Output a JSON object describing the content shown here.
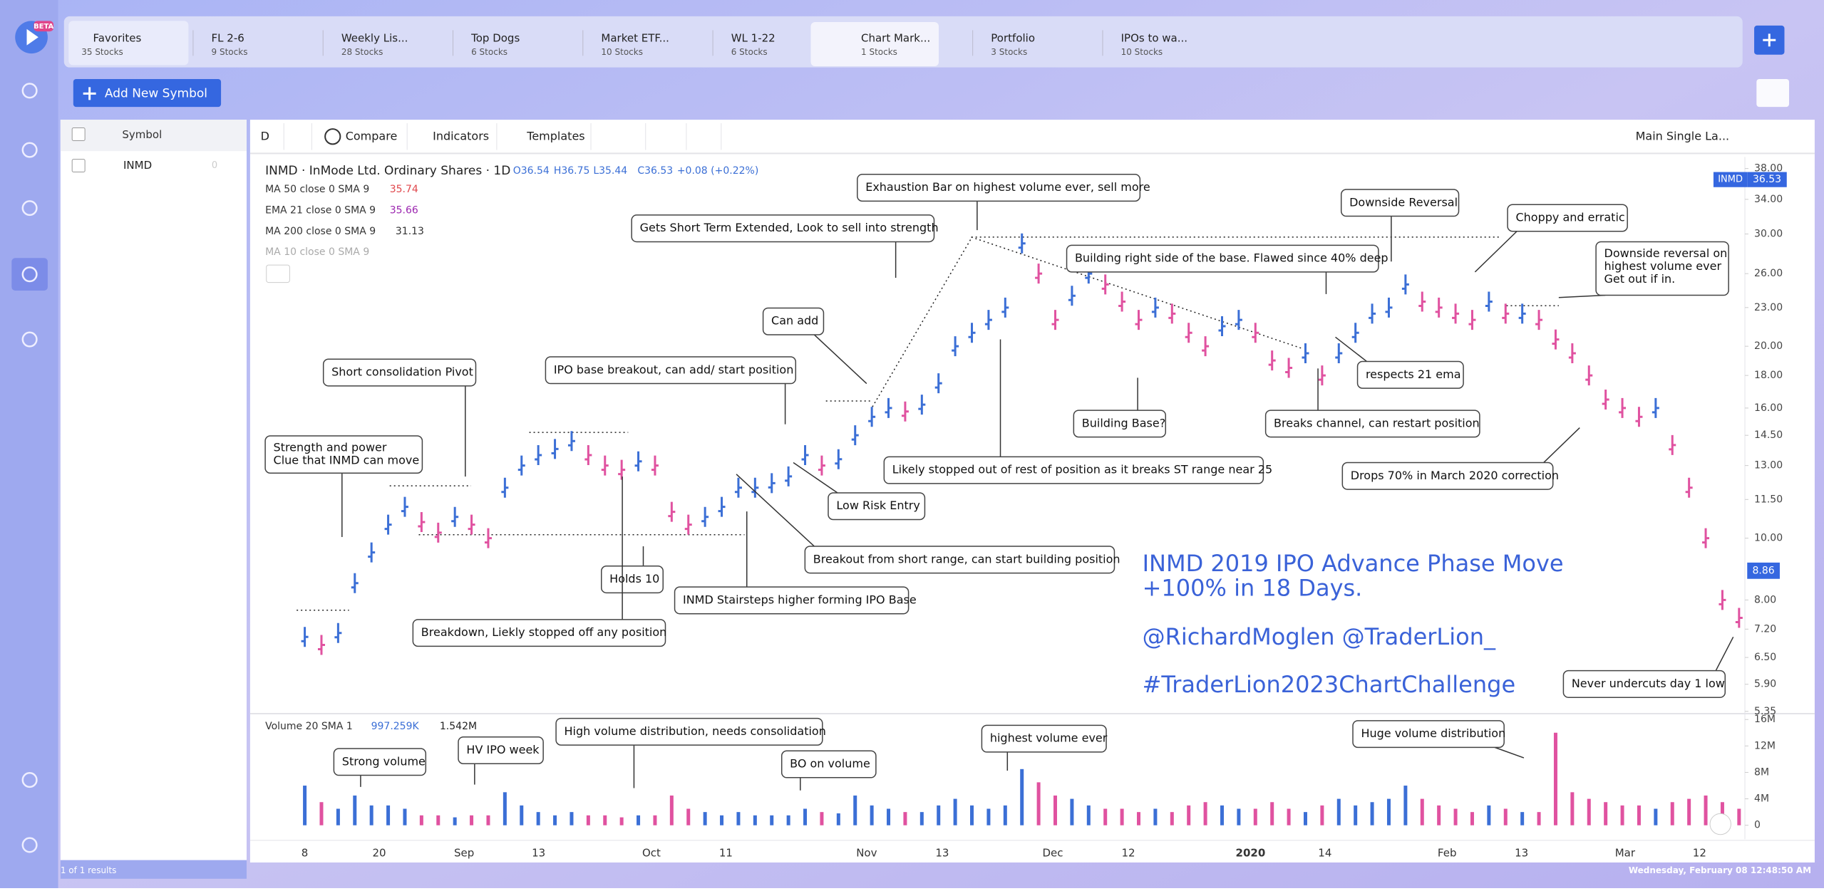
{
  "app": {
    "beta": "BETA",
    "tabs": [
      {
        "name": "Favorites",
        "count": "35 Stocks"
      },
      {
        "name": "FL 2-6",
        "count": "9 Stocks"
      },
      {
        "name": "Weekly Lis...",
        "count": "28 Stocks"
      },
      {
        "name": "Top Dogs",
        "count": "6 Stocks"
      },
      {
        "name": "Market ETF...",
        "count": "10 Stocks"
      },
      {
        "name": "WL 1-22",
        "count": "6 Stocks"
      },
      {
        "name": "Chart Mark...",
        "count": "1 Stocks"
      },
      {
        "name": "Portfolio",
        "count": "3 Stocks"
      },
      {
        "name": "IPOs to wa...",
        "count": "10 Stocks"
      }
    ],
    "add_symbol": "Add New Symbol",
    "list_header": "Symbol",
    "list_rows": [
      {
        "symbol": "INMD",
        "value": "0"
      }
    ],
    "results": "1 of 1 results",
    "clock": "Wednesday, February 08 12:48:50 AM",
    "toolbar": {
      "interval": "D",
      "compare": "Compare",
      "indicators": "Indicators",
      "templates": "Templates",
      "layout": "Main Single La..."
    }
  },
  "chart_data": {
    "type": "ohlc",
    "title": "INMD · InMode Ltd. Ordinary Shares · 1D",
    "quote": {
      "open": "O36.54",
      "high": "H36.75",
      "low": "L35.44",
      "close": "C36.53",
      "change": "+0.08 (+0.22%)"
    },
    "indicators": [
      {
        "name": "MA 50 close 0 SMA 9",
        "value": "35.74",
        "color": "#e0474c"
      },
      {
        "name": "EMA 21 close 0 SMA 9",
        "value": "35.66",
        "color": "#9c27b0"
      },
      {
        "name": "MA 200 close 0 SMA 9",
        "value": "31.13",
        "color": "#333333"
      },
      {
        "name": "MA 10 close 0 SMA 9",
        "color": "#aaaaaa"
      }
    ],
    "volume_legend": {
      "name": "Volume 20 SMA 1",
      "sma": "997.259K",
      "last": "1.542M"
    },
    "price_badge": {
      "symbol": "INMD",
      "price": "36.53"
    },
    "cursor_badge": "8.86",
    "up_color": "#3b6fd6",
    "down_color": "#e052a0",
    "log_scale": true,
    "ylim": [
      5.35,
      38
    ],
    "yticks": [
      {
        "value": 38,
        "label": "38.00"
      },
      {
        "value": 34,
        "label": "34.00"
      },
      {
        "value": 30,
        "label": "30.00"
      },
      {
        "value": 26,
        "label": "26.00"
      },
      {
        "value": 23,
        "label": "23.00"
      },
      {
        "value": 20,
        "label": "20.00"
      },
      {
        "value": 18,
        "label": "18.00"
      },
      {
        "value": 16,
        "label": "16.00"
      },
      {
        "value": 14.5,
        "label": "14.50"
      },
      {
        "value": 13,
        "label": "13.00"
      },
      {
        "value": 11.5,
        "label": "11.50"
      },
      {
        "value": 10,
        "label": "10.00"
      },
      {
        "value": 8,
        "label": "8.00"
      },
      {
        "value": 7.2,
        "label": "7.20"
      },
      {
        "value": 6.5,
        "label": "6.50"
      },
      {
        "value": 5.9,
        "label": "5.90"
      },
      {
        "value": 5.35,
        "label": "5.35"
      }
    ],
    "x_labels": [
      "8",
      "20",
      "Sep",
      "13",
      "Oct",
      "11",
      "Nov",
      "13",
      "Dec",
      "12",
      "2020",
      "14",
      "Feb",
      "13",
      "Mar",
      "12"
    ],
    "closes": [
      7.0,
      6.8,
      7.1,
      8.5,
      9.5,
      10.5,
      11.2,
      10.6,
      10.2,
      10.8,
      10.5,
      10.0,
      12.0,
      13.0,
      13.5,
      13.8,
      14.2,
      13.5,
      13.0,
      12.8,
      13.2,
      13.0,
      11.0,
      10.5,
      10.8,
      11.2,
      12.0,
      12.0,
      12.2,
      12.5,
      13.5,
      13.0,
      13.3,
      14.5,
      15.5,
      16.0,
      15.8,
      16.2,
      17.5,
      20.0,
      21.0,
      22.0,
      23.0,
      29.0,
      26.0,
      22.0,
      24.0,
      26.0,
      25.0,
      23.5,
      22.0,
      23.0,
      22.5,
      21.0,
      20.0,
      21.5,
      22.0,
      21.0,
      19.0,
      18.5,
      19.5,
      18.0,
      19.5,
      21.0,
      22.5,
      23.0,
      25.0,
      23.5,
      23.0,
      22.5,
      22.0,
      23.5,
      22.5,
      22.5,
      22.0,
      20.5,
      19.5,
      18.0,
      16.5,
      16.0,
      15.5,
      16.0,
      14.0,
      12.0,
      10.0,
      8.0,
      7.5
    ],
    "volumes": [
      6,
      3.5,
      2.5,
      4.5,
      3,
      3,
      2.5,
      1.5,
      1.5,
      1.2,
      1.5,
      1.5,
      5,
      3,
      2,
      1.5,
      2,
      1.5,
      1.5,
      1.2,
      1.5,
      1.5,
      4.5,
      2.5,
      2,
      1.5,
      2,
      1.5,
      1.5,
      1.5,
      2.5,
      2,
      1.8,
      4.5,
      3,
      2.5,
      2,
      2,
      3,
      4,
      3,
      2.5,
      3,
      8.5,
      6.5,
      4.5,
      4,
      3,
      2.5,
      2.5,
      2,
      2.5,
      2,
      3,
      3.5,
      3,
      2.5,
      2.5,
      3.5,
      2.5,
      2,
      3,
      4,
      3,
      3.5,
      4,
      6,
      4,
      3,
      2.5,
      2,
      3,
      2.5,
      2,
      2,
      14,
      5,
      4,
      3.5,
      3,
      3,
      2.5,
      3.5,
      4,
      4.5,
      3.5,
      2.5
    ],
    "volume_ylim": [
      0,
      16
    ],
    "volume_ticks": [
      {
        "value": 16,
        "label": "16M"
      },
      {
        "value": 12,
        "label": "12M"
      },
      {
        "value": 8,
        "label": "8M"
      },
      {
        "value": 4,
        "label": "4M"
      },
      0
    ],
    "annotations": [
      [
        "Exhaustion Bar on highest volume ever, sell more"
      ],
      [
        "Gets Short Term Extended, Look to sell into strength"
      ],
      [
        "Downside Reversal"
      ],
      [
        "Choppy and erratic"
      ],
      [
        "Building right side of the base. Flawed since 40% deep"
      ],
      [
        "Downside reversal on",
        "highest volume ever",
        "Get out if in."
      ],
      [
        "Can add"
      ],
      [
        "Short consolidation Pivot"
      ],
      [
        "IPO base breakout, can add/ start position"
      ],
      [
        "respects 21 ema"
      ],
      [
        "Building Base?"
      ],
      [
        "Breaks channel, can restart position"
      ],
      [
        "Strength and power",
        "Clue that INMD can move"
      ],
      [
        "Likely stopped out of rest of position as it breaks ST range near 25"
      ],
      [
        "Drops 70% in March 2020 correction"
      ],
      [
        "Low Risk Entry"
      ],
      [
        "Breakout from short range, can start building position"
      ],
      [
        "Holds 10"
      ],
      [
        "INMD Stairsteps higher forming IPO Base"
      ],
      [
        "Breakdown, Liekly stopped off any position"
      ],
      [
        "Never undercuts day 1 low"
      ],
      [
        "Strong volume"
      ],
      [
        "HV IPO week"
      ],
      [
        "High volume distribution, needs consolidation"
      ],
      [
        "BO on volume"
      ],
      [
        "highest volume ever"
      ],
      [
        "Huge volume distribution"
      ]
    ],
    "headline": [
      "INMD 2019 IPO Advance Phase Move",
      "+100% in 18 Days.",
      "@RichardMoglen @TraderLion_",
      "#TraderLion2023ChartChallenge"
    ]
  }
}
